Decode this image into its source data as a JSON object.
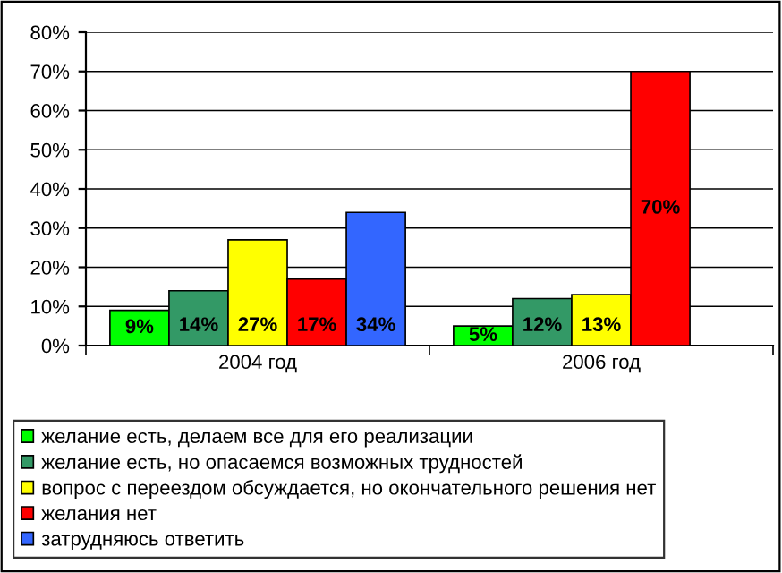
{
  "chart_data": {
    "type": "bar",
    "categories": [
      "2004 год",
      "2006 год"
    ],
    "series": [
      {
        "name": "желание есть, делаем все для его реализации",
        "color": "#00ff00",
        "values": [
          9,
          5
        ],
        "value_labels": [
          "9%",
          "5%"
        ]
      },
      {
        "name": "желание есть, но опасаемся возможных трудностей",
        "color": "#339966",
        "values": [
          14,
          12
        ],
        "value_labels": [
          "14%",
          "12%"
        ]
      },
      {
        "name": "вопрос с переездом обсуждается, но окончательного решения нет",
        "color": "#ffff00",
        "values": [
          27,
          13
        ],
        "value_labels": [
          "27%",
          "13%"
        ]
      },
      {
        "name": "желания нет",
        "color": "#ff0000",
        "values": [
          17,
          70
        ],
        "value_labels": [
          "17%",
          "70%"
        ]
      },
      {
        "name": "затрудняюсь ответить",
        "color": "#3366ff",
        "values": [
          34,
          null
        ],
        "value_labels": [
          "34%",
          null
        ]
      }
    ],
    "ylim": [
      0,
      80
    ],
    "yticks": [
      {
        "value": 0,
        "label": "0%"
      },
      {
        "value": 10,
        "label": "10%"
      },
      {
        "value": 20,
        "label": "20%"
      },
      {
        "value": 30,
        "label": "30%"
      },
      {
        "value": 40,
        "label": "40%"
      },
      {
        "value": 50,
        "label": "50%"
      },
      {
        "value": 60,
        "label": "60%"
      },
      {
        "value": 70,
        "label": "70%"
      },
      {
        "value": 80,
        "label": "80%"
      }
    ],
    "grid": "y",
    "legend": "bottom"
  }
}
